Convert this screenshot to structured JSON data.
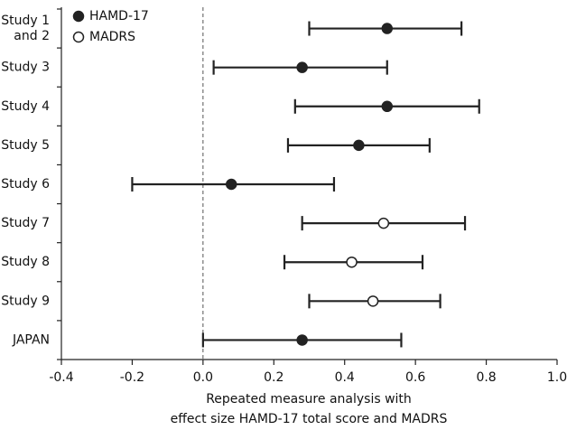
{
  "chart_data": {
    "type": "forest",
    "categories": [
      "Study 1\nand 2",
      "Study 3",
      "Study 4",
      "Study 5",
      "Study 6",
      "Study 7",
      "Study 8",
      "Study 9",
      "JAPAN"
    ],
    "series": [
      {
        "name": "HAMD-17",
        "marker": "filled",
        "color": "#222222",
        "values": [
          0.52,
          0.28,
          0.52,
          0.44,
          0.08,
          null,
          null,
          null,
          0.28
        ]
      },
      {
        "name": "MADRS",
        "marker": "open",
        "color": "#222222",
        "values": [
          null,
          null,
          null,
          null,
          null,
          0.51,
          0.42,
          0.48,
          null
        ]
      }
    ],
    "lower": [
      0.3,
      0.03,
      0.26,
      0.24,
      -0.2,
      0.28,
      0.23,
      0.3,
      0.0
    ],
    "upper": [
      0.73,
      0.52,
      0.78,
      0.64,
      0.37,
      0.74,
      0.62,
      0.67,
      0.56
    ],
    "xlim": [
      -0.4,
      1.0
    ],
    "xticks": [
      -0.4,
      -0.2,
      {
        "value": 0,
        "label": "0.0"
      },
      0.2,
      0.4,
      0.6,
      0.8,
      {
        "value": 1,
        "label": "1.0"
      }
    ],
    "reference_line": 0,
    "x_label": [
      "Repeated measure analysis with",
      "effect size HAMD-17 total score and MADRS"
    ],
    "legend": "top-left"
  }
}
